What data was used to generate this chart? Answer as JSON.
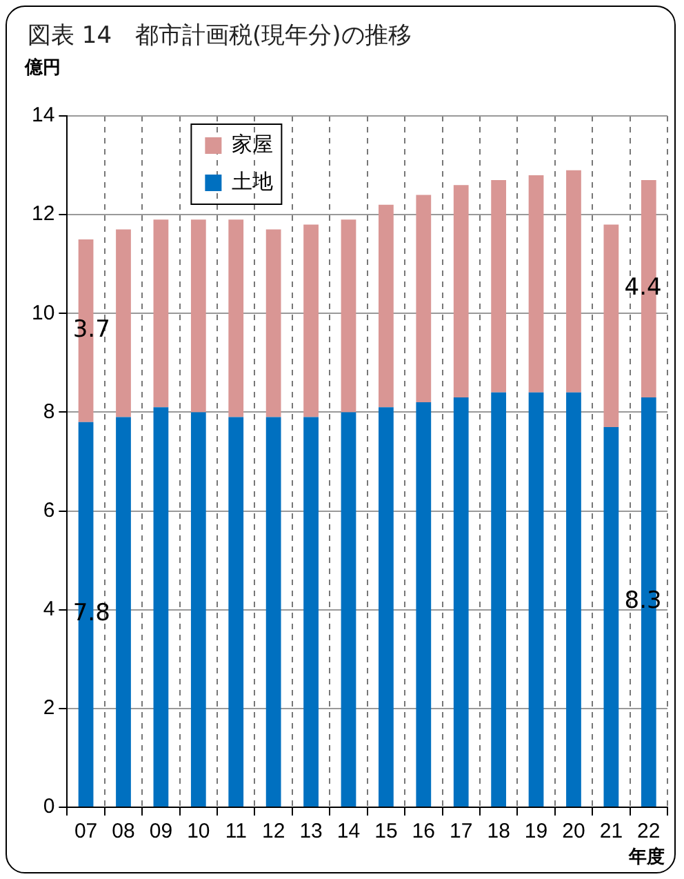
{
  "chart_data": {
    "type": "bar",
    "title": "図表 14　都市計画税(現年分)の推移",
    "ylabel": "億円",
    "xlabel": "年度",
    "categories": [
      "07",
      "08",
      "09",
      "10",
      "11",
      "12",
      "13",
      "14",
      "15",
      "16",
      "17",
      "18",
      "19",
      "20",
      "21",
      "22"
    ],
    "series": [
      {
        "name": "土地",
        "color": "#0070c0",
        "values": [
          7.8,
          7.9,
          8.1,
          8.0,
          7.9,
          7.9,
          7.9,
          8.0,
          8.1,
          8.2,
          8.3,
          8.4,
          8.4,
          8.4,
          7.7,
          8.3
        ],
        "value_labels": [
          "7.8",
          null,
          null,
          null,
          null,
          null,
          null,
          null,
          null,
          null,
          null,
          null,
          null,
          null,
          null,
          "8.3"
        ]
      },
      {
        "name": "家屋",
        "color": "#d99694",
        "values": [
          3.7,
          3.8,
          3.8,
          3.9,
          4.0,
          3.8,
          3.9,
          3.9,
          4.1,
          4.2,
          4.3,
          4.3,
          4.4,
          4.5,
          4.1,
          4.4
        ],
        "value_labels": [
          "3.7",
          null,
          null,
          null,
          null,
          null,
          null,
          null,
          null,
          null,
          null,
          null,
          null,
          null,
          null,
          "4.4"
        ]
      }
    ],
    "stacked": true,
    "ylim": [
      0,
      14
    ],
    "yticks": [
      0,
      2,
      4,
      6,
      8,
      10,
      12,
      14
    ],
    "grid": true,
    "legend": "top left"
  }
}
